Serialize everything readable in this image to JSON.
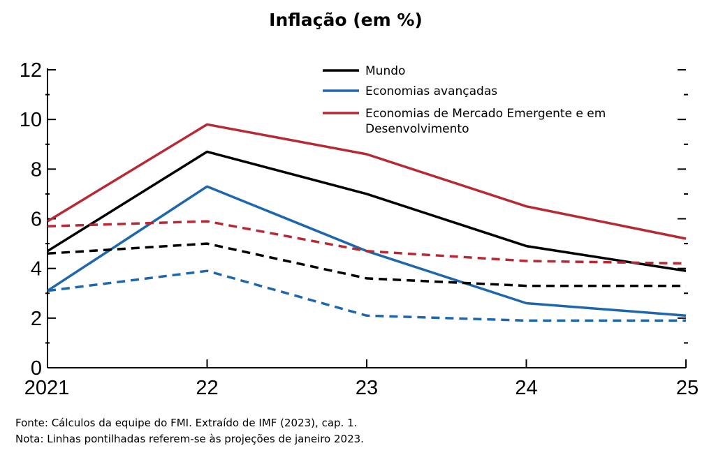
{
  "chart_data": {
    "type": "line",
    "title": "Inflação (em %)",
    "categories": [
      "2021",
      "22",
      "23",
      "24",
      "25"
    ],
    "ylim": [
      0,
      12
    ],
    "yticks": [
      "0",
      "2",
      "4",
      "6",
      "8",
      "10",
      "12"
    ],
    "grid": false,
    "legend_placement": "top-center",
    "series": [
      {
        "name": "Mundo",
        "color": "#000000",
        "style": "solid",
        "values": [
          4.7,
          8.7,
          7.0,
          4.9,
          3.9
        ]
      },
      {
        "name": "Economias avançadas",
        "color": "#1f67ad",
        "style": "solid",
        "values": [
          3.1,
          7.3,
          4.7,
          2.6,
          2.1
        ]
      },
      {
        "name": "Economias de Mercado Emergente e em Desenvolvimento",
        "color": "#b72a35",
        "style": "solid",
        "values": [
          5.9,
          9.8,
          8.6,
          6.5,
          5.2
        ]
      },
      {
        "style": "dashed",
        "color": "#000000",
        "values": [
          4.6,
          5.0,
          3.6,
          3.3,
          3.3
        ]
      },
      {
        "style": "dashed",
        "color": "#1f67ad",
        "values": [
          3.1,
          3.9,
          2.1,
          1.9,
          1.9
        ]
      },
      {
        "style": "dashed",
        "color": "#b72a35",
        "values": [
          5.7,
          5.9,
          4.7,
          4.3,
          4.2
        ]
      }
    ],
    "legend": [
      {
        "color": "#000000",
        "lines": [
          "Mundo"
        ]
      },
      {
        "color": "#1f67ad",
        "lines": [
          "Economias avançadas"
        ]
      },
      {
        "color": "#b72a35",
        "lines": [
          "Economias de Mercado Emergente e em",
          "Desenvolvimento"
        ]
      }
    ]
  },
  "notes": {
    "source": "Fonte: Cálculos da equipe do FMI. Extraído de IMF (2023), cap. 1.",
    "note": "Nota: Linhas pontilhadas referem-se às projeções de janeiro 2023."
  }
}
